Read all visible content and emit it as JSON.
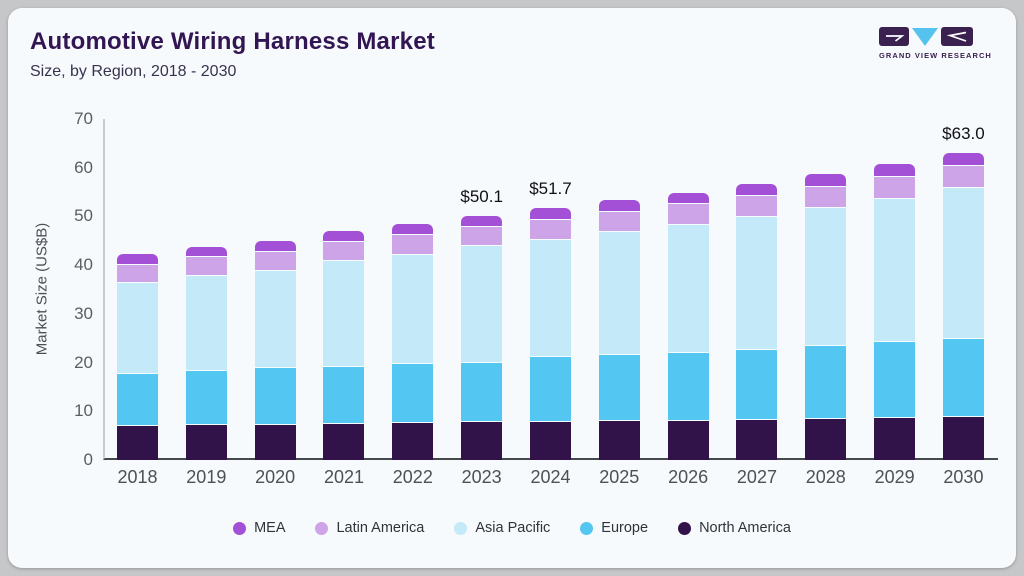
{
  "header": {
    "title": "Automotive Wiring Harness Market",
    "subtitle": "Size, by Region, 2018 - 2030"
  },
  "logo": {
    "text": "GRAND VIEW RESEARCH",
    "brand_purple": "#3b2150",
    "brand_blue": "#55c3ee"
  },
  "chart_data": {
    "type": "bar",
    "stacked": true,
    "title": "Automotive Wiring Harness Market Size, by Region, 2018 - 2030",
    "xlabel": "",
    "ylabel": "Market Size (US$B)",
    "ylim": [
      0,
      70
    ],
    "y_ticks": [
      0,
      10,
      20,
      30,
      40,
      50,
      60,
      70
    ],
    "grid": false,
    "legend_position": "bottom",
    "categories": [
      "2018",
      "2019",
      "2020",
      "2021",
      "2022",
      "2023",
      "2024",
      "2025",
      "2026",
      "2027",
      "2028",
      "2029",
      "2030"
    ],
    "series": [
      {
        "name": "North America",
        "color": "#311349",
        "values": [
          7.2,
          7.3,
          7.45,
          7.6,
          7.8,
          8.0,
          8.1,
          8.2,
          8.3,
          8.4,
          8.6,
          8.8,
          9.0
        ]
      },
      {
        "name": "Europe",
        "color": "#53c6f1",
        "values": [
          10.7,
          11.2,
          11.55,
          11.8,
          12.1,
          12.2,
          13.3,
          13.5,
          13.9,
          14.5,
          15.0,
          15.6,
          16.1
        ]
      },
      {
        "name": "Asia Pacific",
        "color": "#c4e9f8",
        "values": [
          18.7,
          19.5,
          20.1,
          21.7,
          22.5,
          23.9,
          24.0,
          25.3,
          26.3,
          27.2,
          28.3,
          29.4,
          30.9
        ]
      },
      {
        "name": "Latin America",
        "color": "#cda4e8",
        "values": [
          3.7,
          3.8,
          3.8,
          3.9,
          4.0,
          3.9,
          4.1,
          4.1,
          4.2,
          4.3,
          4.4,
          4.5,
          4.5
        ]
      },
      {
        "name": "MEA",
        "color": "#a350d6",
        "values": [
          1.9,
          1.9,
          2.0,
          2.0,
          2.0,
          2.1,
          2.2,
          2.2,
          2.2,
          2.3,
          2.4,
          2.5,
          2.5
        ]
      }
    ],
    "totals": [
      42.2,
      43.7,
      44.9,
      47.0,
      48.4,
      50.1,
      51.7,
      53.3,
      54.9,
      56.7,
      58.7,
      60.8,
      63.0
    ],
    "value_labels": {
      "2023": "$50.1",
      "2024": "$51.7",
      "2030": "$63.0"
    },
    "legend_order": [
      "MEA",
      "Latin America",
      "Asia Pacific",
      "Europe",
      "North America"
    ]
  }
}
